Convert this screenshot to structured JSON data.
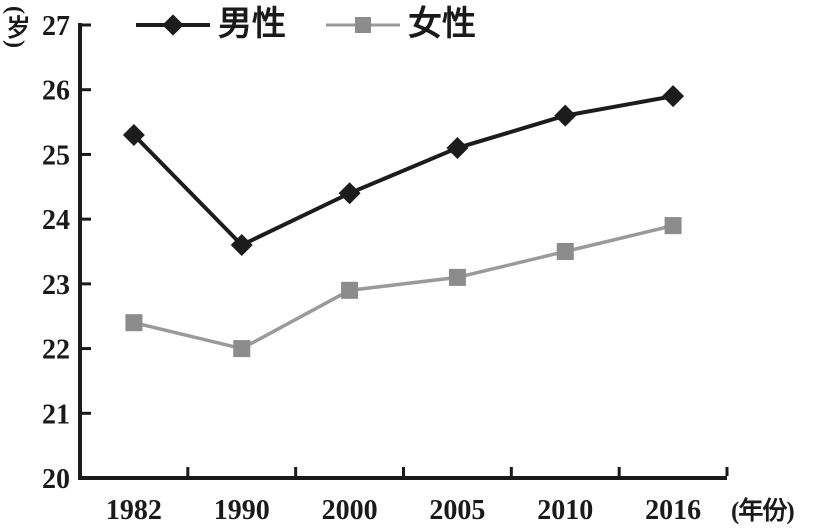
{
  "figure": {
    "y_unit_label": "(岁)",
    "x_unit_label": "(年份)",
    "background": "#ffffff",
    "text_color": "#1a1a1a"
  },
  "legend": {
    "position": "top",
    "items": [
      {
        "label": "男性",
        "marker": "diamond",
        "color": "#1c1c1c"
      },
      {
        "label": "女性",
        "marker": "square",
        "color": "#8c8c8c"
      }
    ]
  },
  "chart_data": {
    "type": "line",
    "title": "",
    "categories": [
      "1982",
      "1990",
      "2000",
      "2005",
      "2010",
      "2016"
    ],
    "series": [
      {
        "name": "男性",
        "values": [
          25.3,
          23.6,
          24.4,
          25.1,
          25.6,
          25.9
        ],
        "line_color": "#1c1c1c",
        "marker_color": "#1c1c1c",
        "marker": "diamond",
        "line_width": 4
      },
      {
        "name": "女性",
        "values": [
          22.4,
          22.0,
          22.9,
          23.1,
          23.5,
          23.9
        ],
        "line_color": "#9a9a9a",
        "marker_color": "#8c8c8c",
        "marker": "square",
        "line_width": 3.5
      }
    ],
    "xlabel": "(年份)",
    "ylabel": "(岁)",
    "ylim": [
      20,
      27
    ],
    "ytick_step": 1,
    "yticks": [
      20,
      21,
      22,
      23,
      24,
      25,
      26,
      27
    ],
    "axis_color": "#1a1a1a",
    "grid": false,
    "legend_position": "top"
  }
}
